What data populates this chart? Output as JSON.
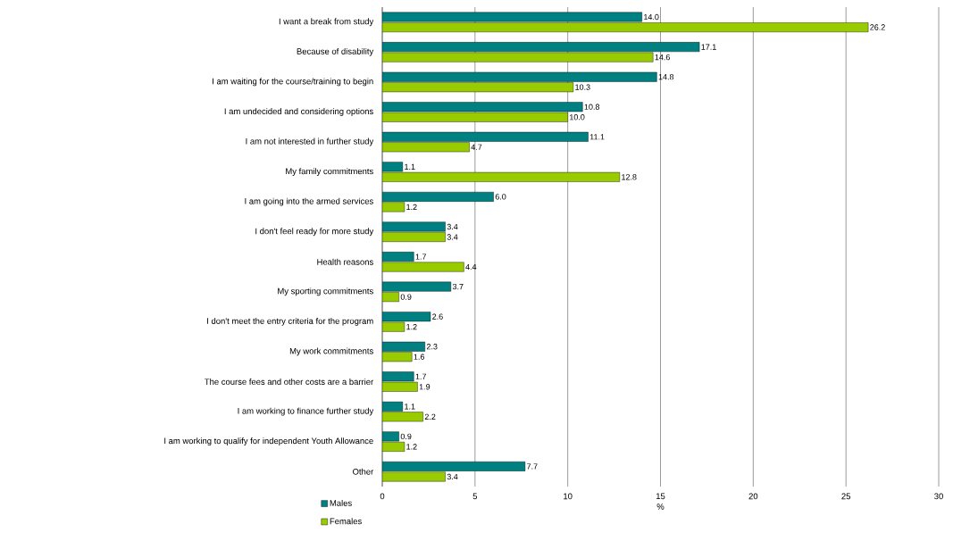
{
  "chart_data": {
    "type": "bar",
    "orientation": "horizontal",
    "xlabel": "%",
    "categories": [
      "I want a break from study",
      "Because of disability",
      "I am waiting for the course/training to begin",
      "I am undecided and considering options",
      "I am not interested in further study",
      "My family commitments",
      "I am going into the armed services",
      "I don't feel ready for more study",
      "Health reasons",
      "My sporting commitments",
      "I don't meet the entry criteria for the program",
      "My work commitments",
      "The course fees and other costs are a barrier",
      "I am working to finance further study",
      "I am working to qualify for independent Youth Allowance",
      "Other"
    ],
    "series": [
      {
        "name": "Males",
        "color": "#008080",
        "values": [
          14.0,
          17.1,
          14.8,
          10.8,
          11.1,
          1.1,
          6.0,
          3.4,
          1.7,
          3.7,
          2.6,
          2.3,
          1.7,
          1.1,
          0.9,
          7.7
        ],
        "value_labels": [
          "14.0",
          "17.1",
          "14.8",
          "10.8",
          "11.1",
          "1.1",
          "6.0",
          "3.4",
          "1.7",
          "3.7",
          "2.6",
          "2.3",
          "1.7",
          "1.1",
          "0.9",
          "7.7"
        ]
      },
      {
        "name": "Females",
        "color": "#99cc00",
        "values": [
          26.2,
          14.6,
          10.3,
          10.0,
          4.7,
          12.8,
          1.2,
          3.4,
          4.4,
          0.9,
          1.2,
          1.6,
          1.9,
          2.2,
          1.2,
          3.4
        ],
        "value_labels": [
          "26.2",
          "14.6",
          "10.3",
          "10.0",
          "4.7",
          "12.8",
          "1.2",
          "3.4",
          "4.4",
          "0.9",
          "1.2",
          "1.6",
          "1.9",
          "2.2",
          "1.2",
          "3.4"
        ]
      }
    ],
    "xlim": [
      0,
      30
    ],
    "xticks": [
      0,
      5,
      10,
      15,
      20,
      25,
      30
    ],
    "grid": "x",
    "legend": "bottom left"
  }
}
